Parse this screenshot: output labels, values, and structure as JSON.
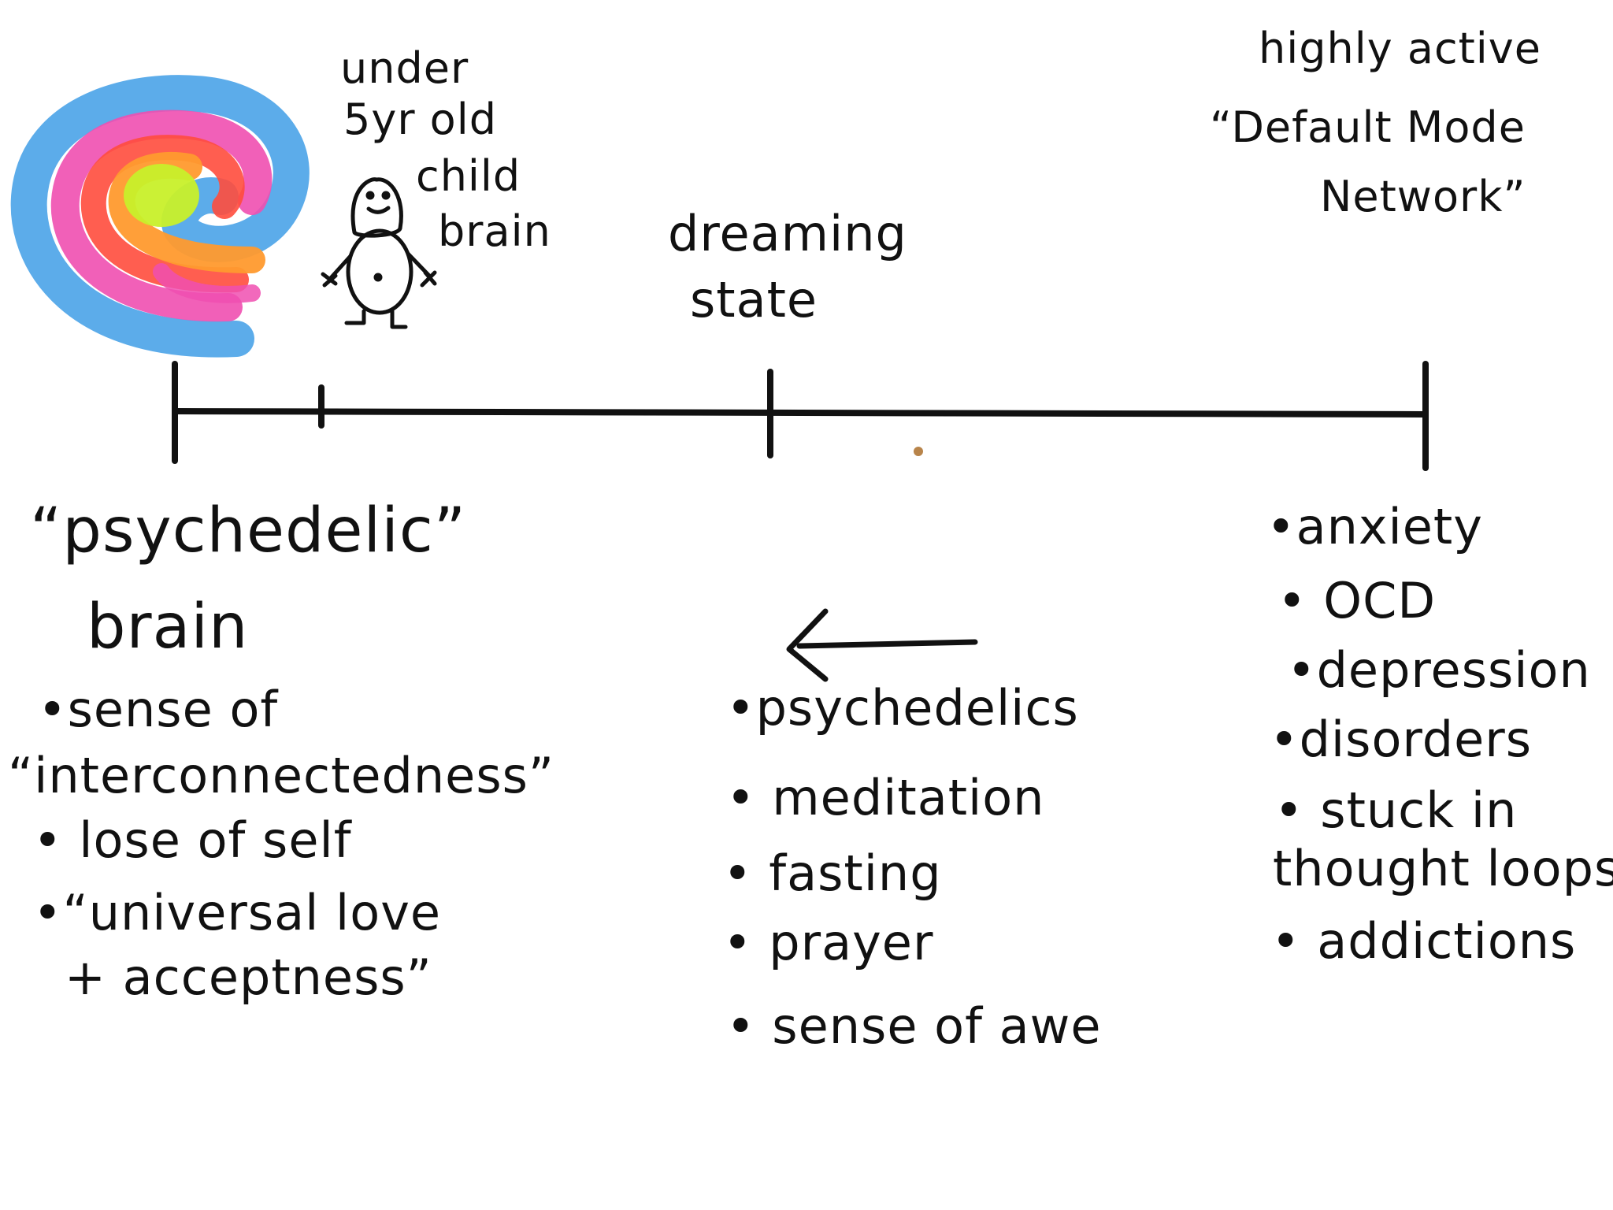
{
  "timeline": {
    "left_top": {
      "caption_lines": [
        "under",
        "5yr old",
        "child",
        "brain"
      ]
    },
    "middle_top": {
      "caption_lines": [
        "dreaming",
        "state"
      ]
    },
    "right_top": {
      "caption_lines": [
        "highly active",
        "“Default Mode",
        "Network”"
      ]
    }
  },
  "left_column": {
    "heading_lines": [
      "“psychedelic”",
      "brain"
    ],
    "items": [
      "•sense of",
      "“interconnectedness”",
      "• lose of self",
      "•“universal love",
      "+ acceptness”"
    ]
  },
  "middle_column": {
    "arrow_direction": "left",
    "items": [
      "•psychedelics",
      "• meditation",
      "• fasting",
      "• prayer",
      "• sense of awe"
    ]
  },
  "right_column": {
    "items": [
      "•anxiety",
      "• OCD",
      "•depression",
      "•disorders",
      "• stuck in",
      "thought loops",
      "• addictions"
    ]
  },
  "colors": {
    "ink": "#111111",
    "swirl_blue": "#4aa3e8",
    "swirl_pink": "#f04fb0",
    "swirl_red": "#ff4d3d",
    "swirl_orange": "#ff9a2e",
    "swirl_yellow_green": "#c8f02a",
    "stray_dot": "#b8844a"
  }
}
